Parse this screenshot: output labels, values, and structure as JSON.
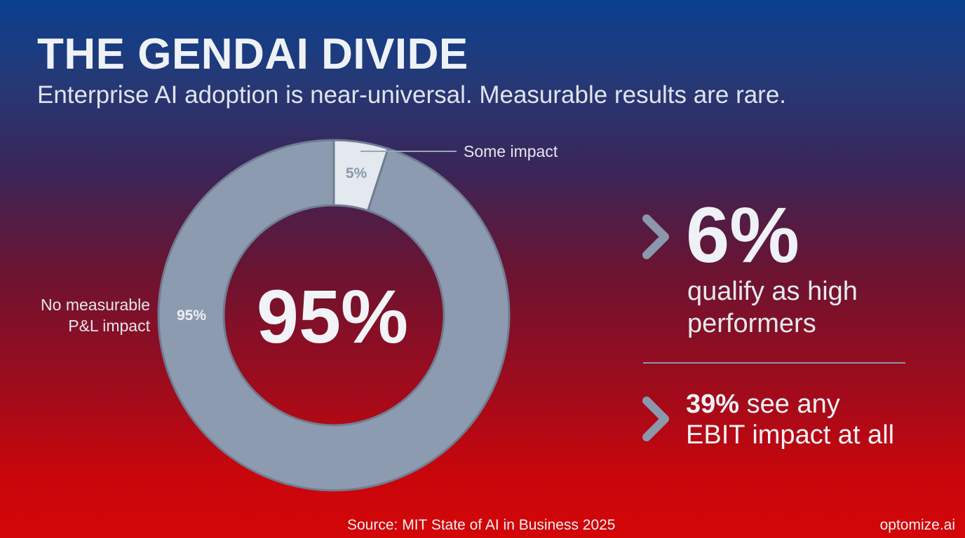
{
  "header": {
    "title": "THE GENDAI DIVIDE",
    "subtitle": "Enterprise AI adoption is near-universal. Measurable results are rare."
  },
  "chart_data": {
    "type": "pie",
    "variant": "donut",
    "slices": [
      {
        "label_lines": [
          "No measurable",
          "P&L impact"
        ],
        "value": 95,
        "value_label": "95%",
        "color": "#8d9bb0"
      },
      {
        "label_lines": [
          "Some impact"
        ],
        "value": 5,
        "value_label": "5%",
        "color": "#e4e8ef"
      }
    ],
    "center_label": "95%"
  },
  "stats": {
    "high_performers": {
      "value": "6%",
      "desc_line1": "qualify as high",
      "desc_line2": "performers"
    },
    "ebit": {
      "value": "39%",
      "text_line1_rest": " see any",
      "text_line2": "EBIT impact at all"
    }
  },
  "footer": {
    "source": "Source: MIT State of AI in Business 2025",
    "brand": "optomize.ai"
  },
  "colors": {
    "gradient_top": "#0a3f8f",
    "gradient_bottom": "#d30608",
    "ring": "#8d9bb0",
    "ring_highlight": "#e4e8ef",
    "chevron": "#8b97ac"
  },
  "icons": {
    "bullet": "chevron-right-icon"
  }
}
